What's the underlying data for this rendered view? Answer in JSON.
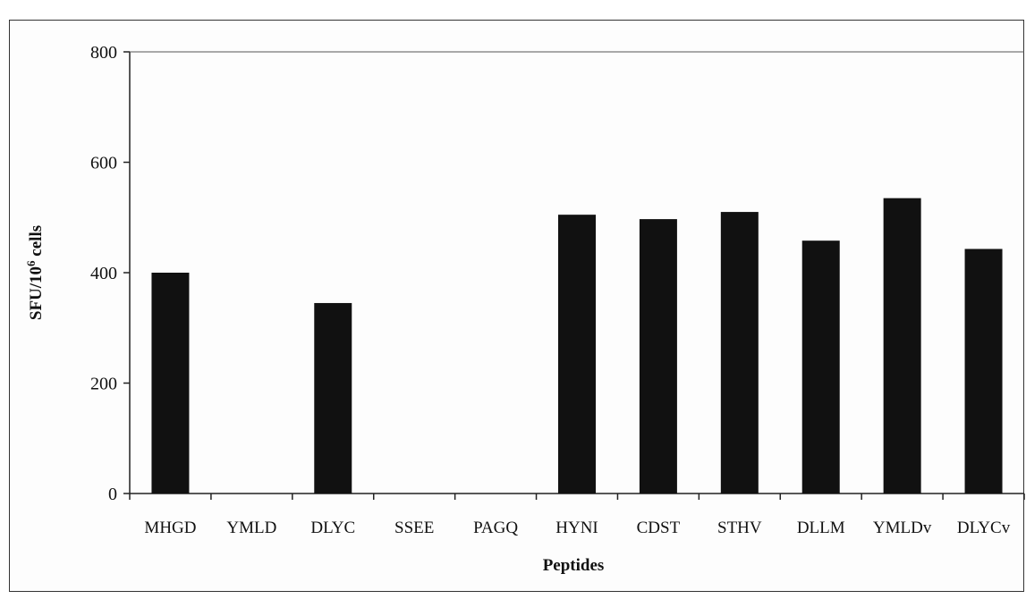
{
  "chart_data": {
    "type": "bar",
    "categories": [
      "MHGD",
      "YMLD",
      "DLYC",
      "SSEE",
      "PAGQ",
      "HYNI",
      "CDST",
      "STHV",
      "DLLM",
      "YMLDv",
      "DLYCv"
    ],
    "values": [
      400,
      0,
      345,
      0,
      0,
      505,
      497,
      510,
      458,
      535,
      443
    ],
    "xlabel": "Peptides",
    "ylabel_main": "SFU/10",
    "ylabel_sup": "6",
    "ylabel_tail": " cells",
    "ylim": [
      0,
      800
    ],
    "yticks": [
      0,
      200,
      400,
      600,
      800
    ],
    "bar_color": "#111111",
    "grid": false,
    "legend": "none"
  }
}
